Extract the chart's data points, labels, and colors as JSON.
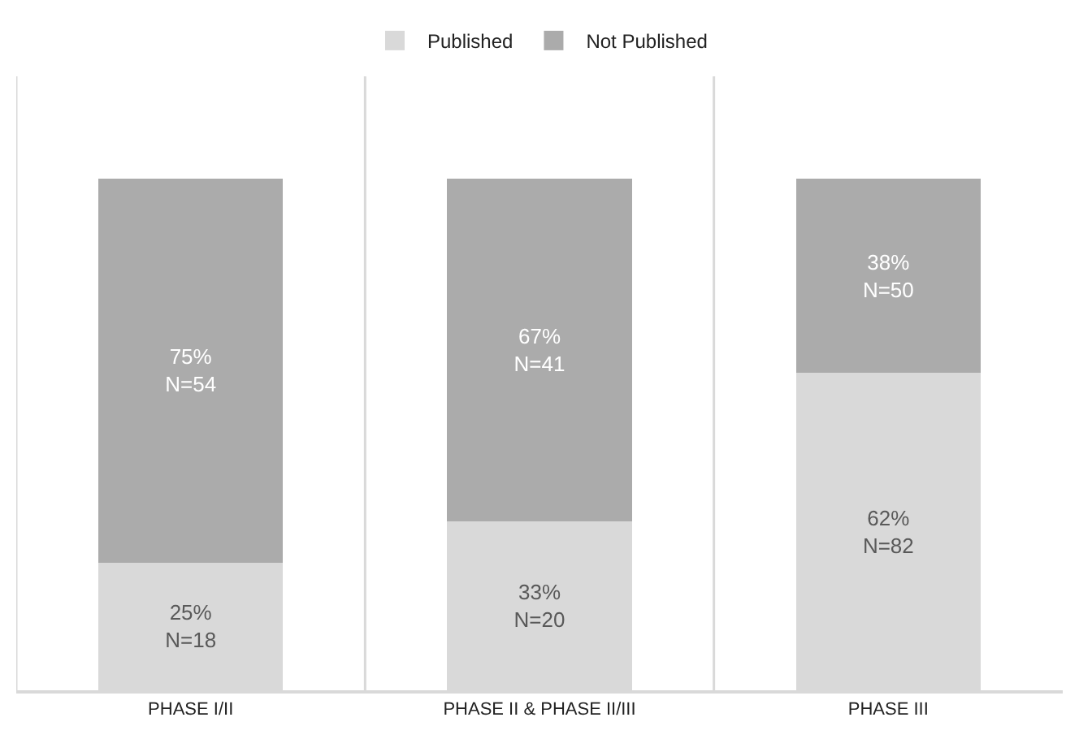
{
  "chart_data": {
    "type": "bar",
    "stacked": true,
    "categories": [
      "PHASE I/II",
      "PHASE II & PHASE II/III",
      "PHASE III"
    ],
    "series": [
      {
        "name": "Published",
        "color": "#d9d9d9",
        "values": [
          25,
          33,
          62
        ],
        "value_labels": [
          "25%\nN=18",
          "33%\nN=20",
          "62%\nN=82"
        ]
      },
      {
        "name": "Not Published",
        "color": "#ababab",
        "values": [
          75,
          67,
          38
        ],
        "value_labels": [
          "75%\nN=54",
          "67%\nN=41",
          "38%\nN=50"
        ]
      }
    ],
    "ylim": [
      0,
      120
    ],
    "tick_labels": "x",
    "grid": "x",
    "legend": "top"
  }
}
